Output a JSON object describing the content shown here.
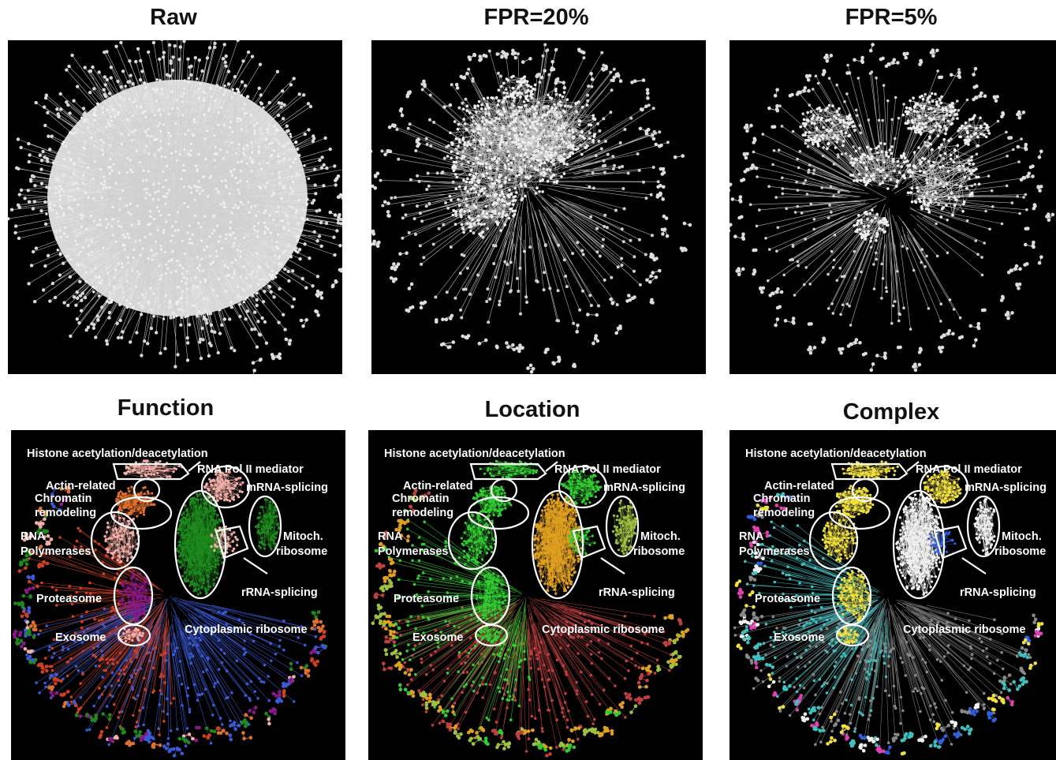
{
  "panels": [
    {
      "title": "Raw"
    },
    {
      "title": "FPR=20%"
    },
    {
      "title": "FPR=5%"
    },
    {
      "title": "Function"
    },
    {
      "title": "Location"
    },
    {
      "title": "Complex"
    }
  ],
  "annotations": {
    "histone": "Histone acetylation/deacetylation",
    "rna_pol_mediator": "RNA Pol II mediator",
    "actin_related": "Actin-related",
    "chromatin": "Chromatin",
    "remodeling": "remodeling",
    "mrna_splicing": "mRNA-splicing",
    "rna": "RNA",
    "polymerases": "Polymerases",
    "mitoch": "Mitoch.",
    "ribosome": "ribosome",
    "rrna_splicing": "rRNA-splicing",
    "proteasome": "Proteasome",
    "exosome": "Exosome",
    "cytoplasmic_ribosome": "Cytoplasmic ribosome"
  },
  "colors": {
    "background": "#000000",
    "node_gray": "#e6e6e6",
    "function_palette": [
      "#f2b0a8",
      "#1e8a1e",
      "#8a1a8a",
      "#3a5ad6",
      "#d04020",
      "#e07030"
    ],
    "location_palette": [
      "#33cc33",
      "#e0a020",
      "#a0c040",
      "#c04040"
    ],
    "complex_palette": [
      "#f0e040",
      "#e040b0",
      "#3060e0",
      "#888888",
      "#40c0c0",
      "#f0f0f0"
    ]
  }
}
